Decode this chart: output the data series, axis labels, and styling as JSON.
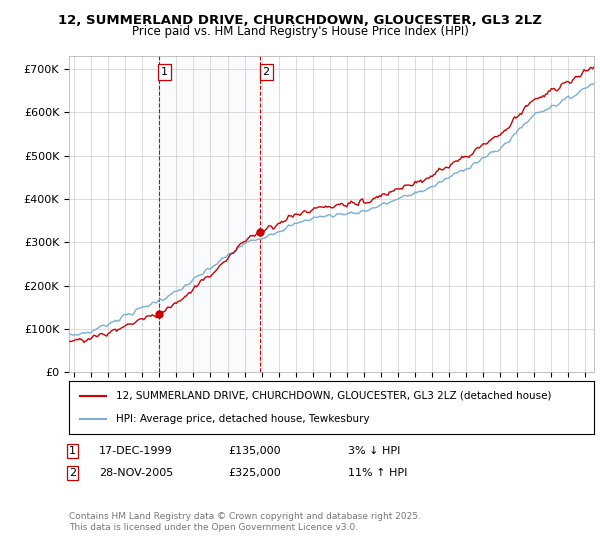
{
  "title": "12, SUMMERLAND DRIVE, CHURCHDOWN, GLOUCESTER, GL3 2LZ",
  "subtitle": "Price paid vs. HM Land Registry's House Price Index (HPI)",
  "ylabel_ticks": [
    "£0",
    "£100K",
    "£200K",
    "£300K",
    "£400K",
    "£500K",
    "£600K",
    "£700K"
  ],
  "ytick_vals": [
    0,
    100000,
    200000,
    300000,
    400000,
    500000,
    600000,
    700000
  ],
  "ylim": [
    0,
    730000
  ],
  "xlim_start": 1994.7,
  "xlim_end": 2025.5,
  "hpi_color": "#7aafd4",
  "price_color": "#cc0000",
  "marker_color": "#cc0000",
  "sale1_x": 1999.958,
  "sale1_y": 135000,
  "sale2_x": 2005.917,
  "sale2_y": 325000,
  "legend_address": "12, SUMMERLAND DRIVE, CHURCHDOWN, GLOUCESTER, GL3 2LZ (detached house)",
  "legend_hpi": "HPI: Average price, detached house, Tewkesbury",
  "copyright": "Contains HM Land Registry data © Crown copyright and database right 2025.\nThis data is licensed under the Open Government Licence v3.0.",
  "background_color": "#ffffff",
  "plot_bg_color": "#ffffff",
  "grid_color": "#cccccc",
  "sale1_date": "17-DEC-1999",
  "sale1_price": "£135,000",
  "sale1_hpi": "3% ↓ HPI",
  "sale2_date": "28-NOV-2005",
  "sale2_price": "£325,000",
  "sale2_hpi": "11% ↑ HPI"
}
